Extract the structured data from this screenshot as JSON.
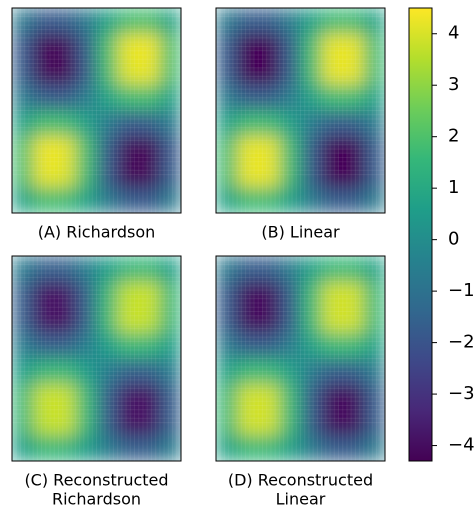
{
  "chart_data": [
    {
      "type": "heatmap",
      "title": [
        "(A) Richardson"
      ],
      "values": [
        [
          -0.7,
          -1.8,
          -1.7,
          -0.8,
          0.7,
          1.8,
          1.9,
          0.7
        ],
        [
          -1.8,
          -4.2,
          -4.1,
          -1.7,
          1.8,
          4.2,
          4.3,
          1.9
        ],
        [
          -1.7,
          -4.1,
          -4.2,
          -1.8,
          1.7,
          4.1,
          4.2,
          1.8
        ],
        [
          -0.7,
          -1.7,
          -1.8,
          -0.7,
          0.8,
          1.7,
          1.8,
          0.7
        ],
        [
          0.7,
          1.8,
          1.7,
          0.7,
          -0.7,
          -1.8,
          -1.7,
          -0.7
        ],
        [
          1.9,
          4.3,
          4.2,
          1.8,
          -1.7,
          -4.1,
          -4.2,
          -1.8
        ],
        [
          1.8,
          4.2,
          4.1,
          1.7,
          -1.8,
          -4.2,
          -4.1,
          -1.7
        ],
        [
          0.7,
          1.8,
          1.7,
          0.8,
          -0.7,
          -1.7,
          -1.8,
          -0.7
        ]
      ]
    },
    {
      "type": "heatmap",
      "title": [
        "(B) Linear"
      ],
      "values": [
        [
          -0.7,
          -1.7,
          -1.7,
          -0.7,
          0.7,
          1.7,
          1.7,
          0.7
        ],
        [
          -1.7,
          -4.2,
          -4.2,
          -1.7,
          1.7,
          4.2,
          4.2,
          1.7
        ],
        [
          -1.7,
          -4.2,
          -4.2,
          -1.7,
          1.7,
          4.2,
          4.2,
          1.7
        ],
        [
          -0.7,
          -1.7,
          -1.7,
          -0.7,
          0.7,
          1.7,
          1.7,
          0.7
        ],
        [
          0.7,
          1.7,
          1.7,
          0.7,
          -0.7,
          -1.7,
          -1.7,
          -0.7
        ],
        [
          1.7,
          4.2,
          4.2,
          1.7,
          -1.7,
          -4.2,
          -4.2,
          -1.7
        ],
        [
          1.7,
          4.2,
          4.2,
          1.7,
          -1.7,
          -4.2,
          -4.2,
          -1.7
        ],
        [
          0.7,
          1.7,
          1.7,
          0.7,
          -0.7,
          -1.7,
          -1.7,
          -0.7
        ]
      ]
    },
    {
      "type": "heatmap",
      "title": [
        "(C) Reconstructed",
        "Richardson"
      ],
      "values": [
        [
          -0.6,
          -1.6,
          -1.6,
          -0.6,
          0.6,
          1.5,
          1.6,
          0.6
        ],
        [
          -1.6,
          -3.9,
          -3.8,
          -1.6,
          1.5,
          3.7,
          3.8,
          1.6
        ],
        [
          -1.6,
          -3.8,
          -3.9,
          -1.6,
          1.6,
          3.8,
          3.7,
          1.5
        ],
        [
          -0.6,
          -1.6,
          -1.6,
          -0.6,
          0.6,
          1.6,
          1.5,
          0.6
        ],
        [
          0.6,
          1.5,
          1.6,
          0.6,
          -0.6,
          -1.6,
          -1.6,
          -0.6
        ],
        [
          1.6,
          3.8,
          3.8,
          1.6,
          -1.6,
          -3.8,
          -3.9,
          -1.6
        ],
        [
          1.5,
          3.7,
          3.8,
          1.6,
          -1.6,
          -3.9,
          -3.8,
          -1.6
        ],
        [
          0.6,
          1.6,
          1.5,
          0.6,
          -0.6,
          -1.6,
          -1.6,
          -0.6
        ]
      ]
    },
    {
      "type": "heatmap",
      "title": [
        "(D) Reconstructed",
        "Linear"
      ],
      "values": [
        [
          -0.7,
          -1.7,
          -1.7,
          -0.7,
          0.7,
          1.6,
          1.6,
          0.7
        ],
        [
          -1.7,
          -4.0,
          -4.0,
          -1.7,
          1.6,
          3.9,
          3.9,
          1.6
        ],
        [
          -1.7,
          -4.0,
          -4.0,
          -1.7,
          1.6,
          3.9,
          3.9,
          1.6
        ],
        [
          -0.7,
          -1.7,
          -1.7,
          -0.7,
          0.7,
          1.6,
          1.6,
          0.7
        ],
        [
          0.7,
          1.6,
          1.6,
          0.7,
          -0.7,
          -1.7,
          -1.7,
          -0.7
        ],
        [
          1.6,
          3.9,
          3.9,
          1.6,
          -1.7,
          -4.0,
          -4.0,
          -1.7
        ],
        [
          1.6,
          3.9,
          3.9,
          1.6,
          -1.7,
          -4.0,
          -4.0,
          -1.7
        ],
        [
          0.7,
          1.6,
          1.6,
          0.7,
          -0.7,
          -1.7,
          -1.7,
          -0.7
        ]
      ]
    }
  ],
  "colorbar": {
    "cmap": "viridis",
    "vlim": [
      -4.3,
      4.5
    ],
    "ticks": [
      {
        "value": -4,
        "label": "−4"
      },
      {
        "value": -3,
        "label": "−3"
      },
      {
        "value": -2,
        "label": "−2"
      },
      {
        "value": -1,
        "label": "−1"
      },
      0,
      1,
      2,
      3,
      4
    ]
  }
}
